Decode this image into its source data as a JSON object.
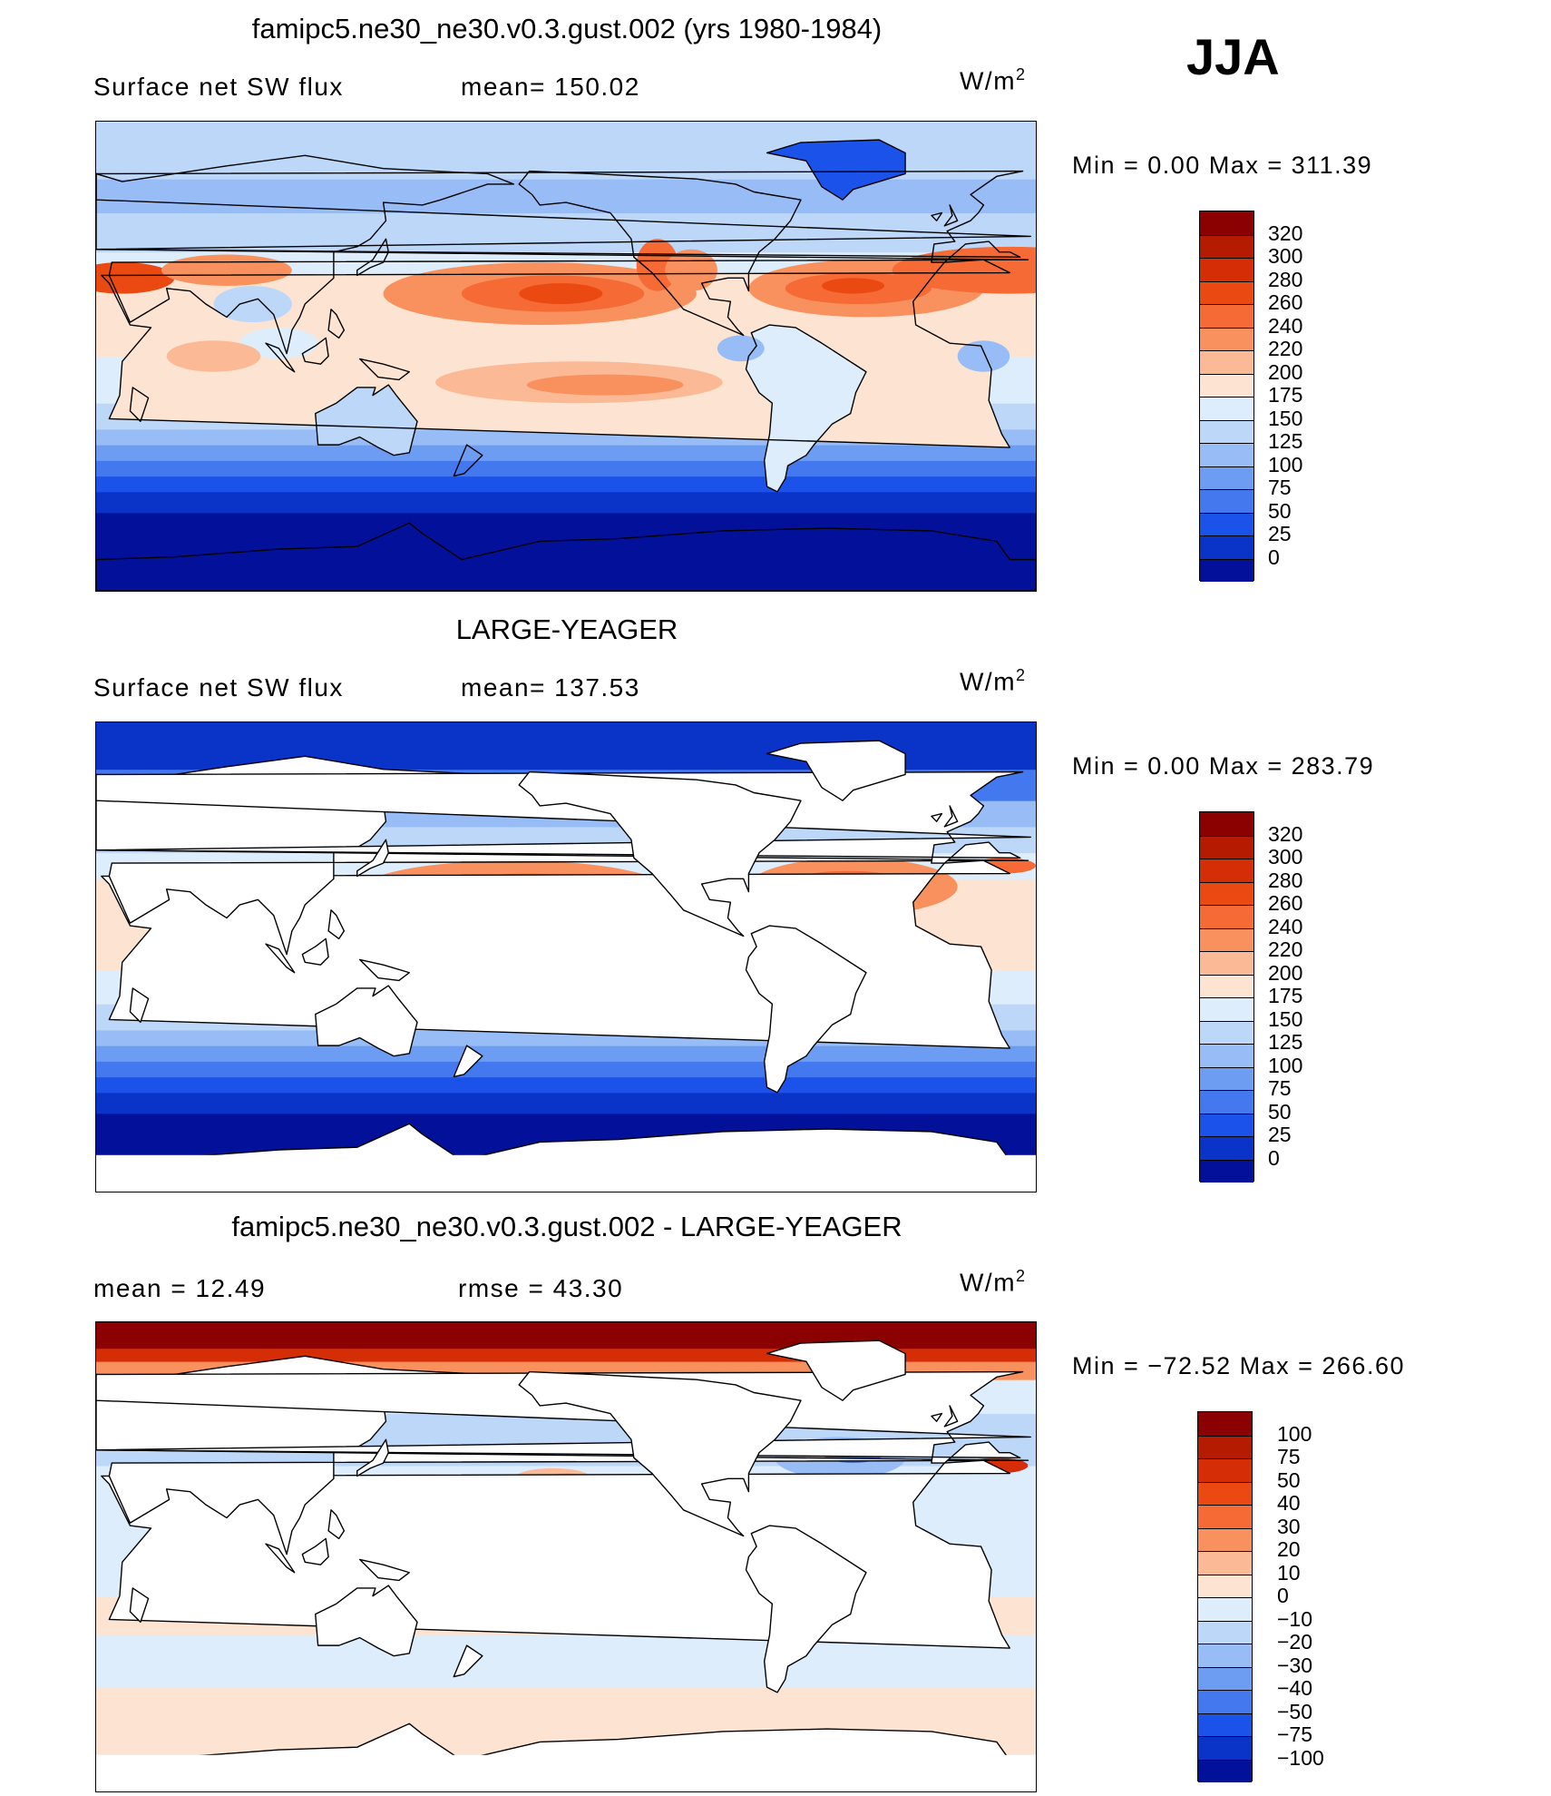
{
  "season": "JJA",
  "chart_data": [
    {
      "type": "heatmap",
      "title": "famipc5.ne30_ne30.v0.3.gust.002 (yrs 1980-1984)",
      "subtitle_left": "Surface net SW flux",
      "subtitle_mid": "mean= 150.02",
      "units_base": "W/m",
      "units_exp": "2",
      "minmax": "Min =    0.00  Max  =  311.39",
      "colorbar": {
        "labels": [
          "320",
          "300",
          "280",
          "260",
          "240",
          "220",
          "200",
          "175",
          "150",
          "125",
          "100",
          "75",
          "50",
          "25",
          "0"
        ],
        "colors": [
          "#8b0000",
          "#b51b00",
          "#d52e07",
          "#ea4a12",
          "#f56a35",
          "#f9915f",
          "#fcb996",
          "#fde4d2",
          "#ddedfb",
          "#bdd7f9",
          "#98bdf6",
          "#6d9df2",
          "#4478ef",
          "#1b52ea",
          "#0a34c8",
          "#03109a"
        ]
      },
      "land_masked": false,
      "palette": [
        "#03109a",
        "#0a34c8",
        "#1b52ea",
        "#4478ef",
        "#6d9df2",
        "#98bdf6",
        "#bdd7f9",
        "#ddedfb",
        "#fde4d2",
        "#fcb996",
        "#f9915f",
        "#f56a35",
        "#ea4a12",
        "#d52e07"
      ]
    },
    {
      "type": "heatmap",
      "title": "LARGE-YEAGER",
      "subtitle_left": "Surface net SW flux",
      "subtitle_mid": "mean= 137.53",
      "units_base": "W/m",
      "units_exp": "2",
      "minmax": "Min =    0.00  Max  =  283.79",
      "colorbar": {
        "labels": [
          "320",
          "300",
          "280",
          "260",
          "240",
          "220",
          "200",
          "175",
          "150",
          "125",
          "100",
          "75",
          "50",
          "25",
          "0"
        ],
        "colors": [
          "#8b0000",
          "#b51b00",
          "#d52e07",
          "#ea4a12",
          "#f56a35",
          "#f9915f",
          "#fcb996",
          "#fde4d2",
          "#ddedfb",
          "#bdd7f9",
          "#98bdf6",
          "#6d9df2",
          "#4478ef",
          "#1b52ea",
          "#0a34c8",
          "#03109a"
        ]
      },
      "land_masked": true,
      "palette": [
        "#03109a",
        "#0a34c8",
        "#1b52ea",
        "#4478ef",
        "#6d9df2",
        "#98bdf6",
        "#bdd7f9",
        "#ddedfb",
        "#fde4d2",
        "#fcb996",
        "#f9915f",
        "#f56a35",
        "#ea4a12"
      ]
    },
    {
      "type": "heatmap",
      "title": "famipc5.ne30_ne30.v0.3.gust.002 - LARGE-YEAGER",
      "subtitle_left": "mean =    12.49",
      "subtitle_mid": "rmse =    43.30",
      "units_base": "W/m",
      "units_exp": "2",
      "minmax": "Min  = −72.52  Max  =  266.60",
      "colorbar": {
        "labels": [
          "100",
          "75",
          "50",
          "40",
          "30",
          "20",
          "10",
          "0",
          "−10",
          "−20",
          "−30",
          "−40",
          "−50",
          "−75",
          "−100"
        ],
        "colors": [
          "#8b0000",
          "#b51b00",
          "#d52e07",
          "#ea4a12",
          "#f56a35",
          "#f9915f",
          "#fcb996",
          "#fde4d2",
          "#ddedfb",
          "#bdd7f9",
          "#98bdf6",
          "#6d9df2",
          "#4478ef",
          "#1b52ea",
          "#0a34c8",
          "#03109a"
        ]
      },
      "land_masked": true,
      "palette": [
        "#4478ef",
        "#98bdf6",
        "#bdd7f9",
        "#ddedfb",
        "#fde4d2",
        "#fcb996",
        "#f9915f",
        "#d52e07",
        "#8b0000"
      ]
    }
  ]
}
